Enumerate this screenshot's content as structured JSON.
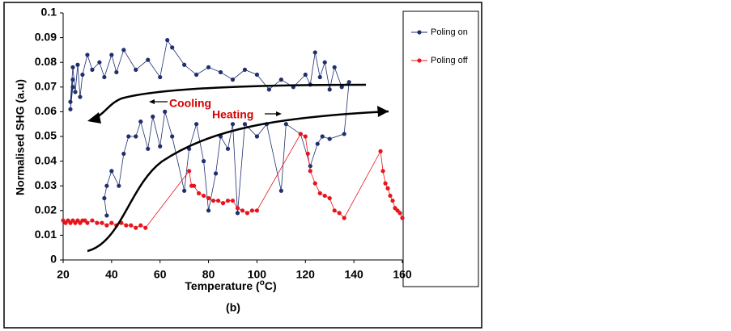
{
  "chart_data": {
    "type": "scatter-line",
    "x_label": {
      "text": "Temperature  (",
      "sup": "o",
      "end": "C)"
    },
    "y_label": "Normalised  SHG (a.u)",
    "caption": "(b)",
    "annotations": [
      "Cooling",
      "Heating"
    ],
    "xlim": [
      20,
      160
    ],
    "xticks": [
      20,
      40,
      60,
      80,
      100,
      120,
      140,
      160
    ],
    "ylim": [
      0,
      0.1
    ],
    "yticks": [
      0,
      0.01,
      0.02,
      0.03,
      0.04,
      0.05,
      0.06,
      0.07,
      0.08,
      0.09,
      0.1
    ],
    "series": [
      {
        "name": "Poling on",
        "color": "#1f2f6e",
        "x": [
          38,
          37,
          38,
          40,
          43,
          45,
          47,
          50,
          52,
          55,
          57,
          60,
          62,
          65,
          70,
          72,
          75,
          78,
          80,
          83,
          85,
          88,
          90,
          92,
          95,
          100,
          104,
          110,
          112,
          118,
          122,
          125,
          127,
          130,
          136,
          138,
          135,
          132,
          130,
          128,
          126,
          124,
          122,
          120,
          115,
          110,
          105,
          100,
          95,
          90,
          85,
          80,
          75,
          70,
          65,
          63,
          60,
          55,
          50,
          45,
          42,
          40,
          37,
          35,
          32,
          30,
          28,
          27,
          26,
          25,
          24,
          23,
          24,
          23,
          24
        ],
        "values": [
          0.018,
          0.025,
          0.03,
          0.036,
          0.03,
          0.043,
          0.05,
          0.05,
          0.056,
          0.045,
          0.058,
          0.046,
          0.06,
          0.05,
          0.028,
          0.045,
          0.055,
          0.04,
          0.02,
          0.035,
          0.05,
          0.045,
          0.055,
          0.019,
          0.055,
          0.05,
          0.055,
          0.028,
          0.055,
          0.051,
          0.038,
          0.047,
          0.05,
          0.049,
          0.051,
          0.072,
          0.07,
          0.078,
          0.069,
          0.08,
          0.074,
          0.084,
          0.071,
          0.075,
          0.07,
          0.073,
          0.069,
          0.075,
          0.077,
          0.073,
          0.076,
          0.078,
          0.075,
          0.079,
          0.086,
          0.089,
          0.074,
          0.081,
          0.077,
          0.085,
          0.076,
          0.083,
          0.074,
          0.08,
          0.077,
          0.083,
          0.075,
          0.066,
          0.079,
          0.068,
          0.078,
          0.064,
          0.073,
          0.061,
          0.07
        ]
      },
      {
        "name": "Poling off",
        "color": "#e8141c",
        "x": [
          20,
          21,
          22,
          23,
          24,
          25,
          26,
          27,
          28,
          29,
          30,
          32,
          34,
          36,
          38,
          40,
          42,
          44,
          46,
          48,
          50,
          52,
          54,
          72,
          73,
          74,
          76,
          78,
          80,
          82,
          84,
          86,
          88,
          90,
          92,
          94,
          96,
          98,
          100,
          118,
          120,
          121,
          122,
          124,
          126,
          128,
          130,
          132,
          134,
          136,
          151,
          152,
          153,
          154,
          155,
          156,
          157,
          158,
          159,
          160
        ],
        "values": [
          0.016,
          0.015,
          0.016,
          0.015,
          0.016,
          0.015,
          0.016,
          0.015,
          0.016,
          0.016,
          0.015,
          0.016,
          0.015,
          0.015,
          0.014,
          0.015,
          0.014,
          0.015,
          0.014,
          0.014,
          0.013,
          0.014,
          0.013,
          0.036,
          0.03,
          0.03,
          0.027,
          0.026,
          0.025,
          0.024,
          0.024,
          0.023,
          0.024,
          0.024,
          0.021,
          0.02,
          0.019,
          0.02,
          0.02,
          0.051,
          0.05,
          0.043,
          0.036,
          0.031,
          0.027,
          0.026,
          0.025,
          0.02,
          0.019,
          0.017,
          0.044,
          0.036,
          0.031,
          0.029,
          0.026,
          0.024,
          0.021,
          0.02,
          0.019,
          0.017
        ]
      }
    ]
  }
}
